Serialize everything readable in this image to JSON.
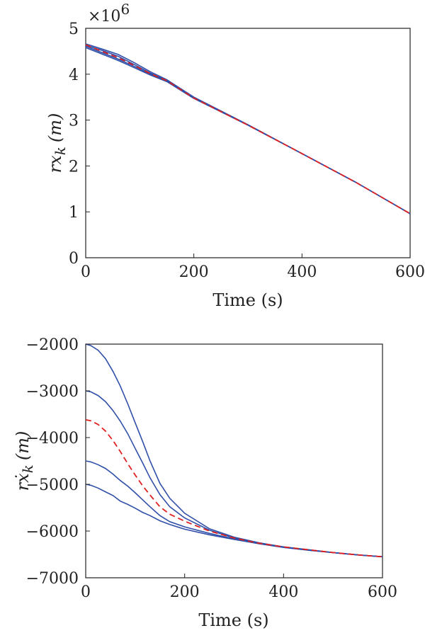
{
  "chart_data": [
    {
      "type": "line",
      "xlabel": "Time (s)",
      "ylabel": "rx",
      "ylabel_sub": "k",
      "ylabel_unit": "(m)",
      "y_multiplier": "×10",
      "y_multiplier_exp": "6",
      "xlim": [
        0,
        600
      ],
      "ylim": [
        0,
        5
      ],
      "xticks": [
        0,
        200,
        400,
        600
      ],
      "yticks": [
        0,
        1,
        2,
        3,
        4,
        5
      ],
      "grid": false,
      "colors": {
        "series": "#2f4fa8",
        "estimate": "#e02020"
      },
      "series": [
        {
          "x": [
            0,
            30,
            60,
            90,
            120,
            150,
            200,
            300,
            400,
            500,
            600
          ],
          "values": [
            4.66,
            4.55,
            4.43,
            4.25,
            4.05,
            3.88,
            3.5,
            2.9,
            2.27,
            1.64,
            0.96
          ]
        },
        {
          "x": [
            0,
            30,
            60,
            90,
            120,
            150,
            200,
            300,
            400,
            500,
            600
          ],
          "values": [
            4.63,
            4.52,
            4.39,
            4.21,
            4.02,
            3.86,
            3.49,
            2.89,
            2.27,
            1.64,
            0.96
          ]
        },
        {
          "x": [
            0,
            30,
            60,
            90,
            120,
            150,
            200,
            300,
            400,
            500,
            600
          ],
          "values": [
            4.61,
            4.47,
            4.33,
            4.17,
            4.0,
            3.85,
            3.48,
            2.89,
            2.27,
            1.64,
            0.96
          ]
        },
        {
          "x": [
            0,
            30,
            60,
            90,
            120,
            150,
            200,
            300,
            400,
            500,
            600
          ],
          "values": [
            4.58,
            4.44,
            4.3,
            4.14,
            3.98,
            3.84,
            3.47,
            2.89,
            2.27,
            1.64,
            0.96
          ]
        },
        {
          "x": [
            0,
            30,
            60,
            90,
            120,
            150,
            200,
            300,
            400,
            500,
            600
          ],
          "values": [
            4.64,
            4.5,
            4.36,
            4.19,
            4.01,
            3.86,
            3.48,
            2.89,
            2.27,
            1.64,
            0.96
          ],
          "style": "dashed"
        }
      ]
    },
    {
      "type": "line",
      "xlabel": "Time (s)",
      "ylabel": "rẋ",
      "ylabel_sub": "k",
      "ylabel_unit": "(m)",
      "xlim": [
        0,
        600
      ],
      "ylim": [
        -7000,
        -2000
      ],
      "xticks": [
        0,
        200,
        400,
        600
      ],
      "yticks": [
        -7000,
        -6000,
        -5000,
        -4000,
        -3000,
        -2000
      ],
      "ytick_labels": [
        "−7000",
        "−6000",
        "−5000",
        "−4000",
        "−3000",
        "−2000"
      ],
      "grid": false,
      "colors": {
        "series": "#2f4fa8",
        "estimate": "#e02020"
      },
      "series": [
        {
          "x": [
            0,
            10,
            25,
            40,
            55,
            70,
            85,
            100,
            115,
            130,
            150,
            170,
            200,
            250,
            300,
            350,
            400,
            450,
            500,
            550,
            600
          ],
          "values": [
            -2000,
            -2030,
            -2130,
            -2310,
            -2580,
            -2900,
            -3280,
            -3680,
            -4080,
            -4500,
            -4980,
            -5300,
            -5620,
            -5950,
            -6130,
            -6250,
            -6340,
            -6400,
            -6460,
            -6510,
            -6550
          ]
        },
        {
          "x": [
            0,
            10,
            25,
            40,
            55,
            70,
            85,
            100,
            115,
            130,
            150,
            170,
            200,
            250,
            300,
            350,
            400,
            450,
            500,
            550,
            600
          ],
          "values": [
            -3000,
            -3020,
            -3100,
            -3230,
            -3420,
            -3650,
            -3920,
            -4230,
            -4540,
            -4860,
            -5220,
            -5480,
            -5720,
            -5980,
            -6150,
            -6260,
            -6340,
            -6400,
            -6460,
            -6510,
            -6550
          ]
        },
        {
          "x": [
            0,
            10,
            25,
            40,
            55,
            70,
            85,
            100,
            115,
            130,
            150,
            170,
            200,
            250,
            300,
            350,
            400,
            450,
            500,
            550,
            600
          ],
          "values": [
            -4500,
            -4520,
            -4580,
            -4660,
            -4780,
            -4920,
            -5040,
            -5180,
            -5330,
            -5480,
            -5670,
            -5800,
            -5910,
            -6050,
            -6170,
            -6270,
            -6350,
            -6410,
            -6460,
            -6510,
            -6550
          ]
        },
        {
          "x": [
            0,
            10,
            25,
            40,
            55,
            70,
            85,
            100,
            115,
            130,
            150,
            170,
            200,
            250,
            300,
            350,
            400,
            450,
            500,
            550,
            600
          ],
          "values": [
            -5000,
            -5020,
            -5080,
            -5160,
            -5240,
            -5360,
            -5430,
            -5510,
            -5600,
            -5670,
            -5780,
            -5860,
            -5960,
            -6080,
            -6180,
            -6270,
            -6350,
            -6410,
            -6460,
            -6510,
            -6550
          ]
        },
        {
          "x": [
            0,
            10,
            25,
            40,
            55,
            70,
            85,
            100,
            115,
            130,
            150,
            170,
            200,
            250,
            300,
            350,
            400,
            450,
            500,
            550,
            600
          ],
          "values": [
            -3620,
            -3640,
            -3720,
            -3860,
            -4060,
            -4300,
            -4560,
            -4800,
            -5030,
            -5230,
            -5480,
            -5640,
            -5790,
            -6000,
            -6150,
            -6260,
            -6340,
            -6400,
            -6460,
            -6510,
            -6550
          ],
          "style": "dashed"
        }
      ]
    }
  ]
}
